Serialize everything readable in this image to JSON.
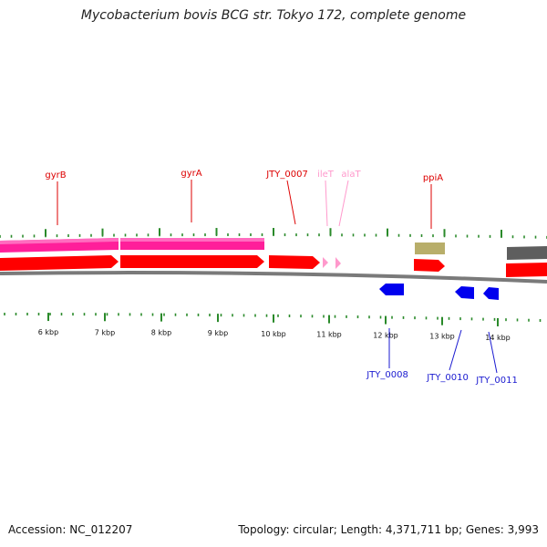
{
  "title": "Mycobacterium bovis BCG str. Tokyo 172, complete genome",
  "accession": "Accession: NC_012207",
  "summary": "Topology: circular; Length: 4,371,711 bp; Genes: 3,993",
  "colors": {
    "forward_cds": "#ff0000",
    "reverse_cds": "#0000ee",
    "rna": "#ff99cc",
    "misc_feature": "#ff1493",
    "other_feature": "#b8ae6a",
    "gap_feature": "#666666",
    "tick": "#2a8a2a",
    "backbone": "#777777"
  },
  "ruler": {
    "labels": [
      "6 kbp",
      "7 kbp",
      "8 kbp",
      "9 kbp",
      "10 kbp",
      "11 kbp",
      "12 kbp",
      "13 kbp",
      "14 kbp"
    ]
  },
  "genes_top": [
    {
      "name": "gyrB",
      "type": "cds"
    },
    {
      "name": "gyrA",
      "type": "cds"
    },
    {
      "name": "JTY_0007",
      "type": "cds"
    },
    {
      "name": "ileT",
      "type": "rna"
    },
    {
      "name": "alaT",
      "type": "rna"
    },
    {
      "name": "ppiA",
      "type": "cds"
    }
  ],
  "genes_bottom": [
    {
      "name": "JTY_0008",
      "type": "cds"
    },
    {
      "name": "JTY_0010",
      "type": "cds"
    },
    {
      "name": "JTY_0011",
      "type": "cds"
    }
  ]
}
